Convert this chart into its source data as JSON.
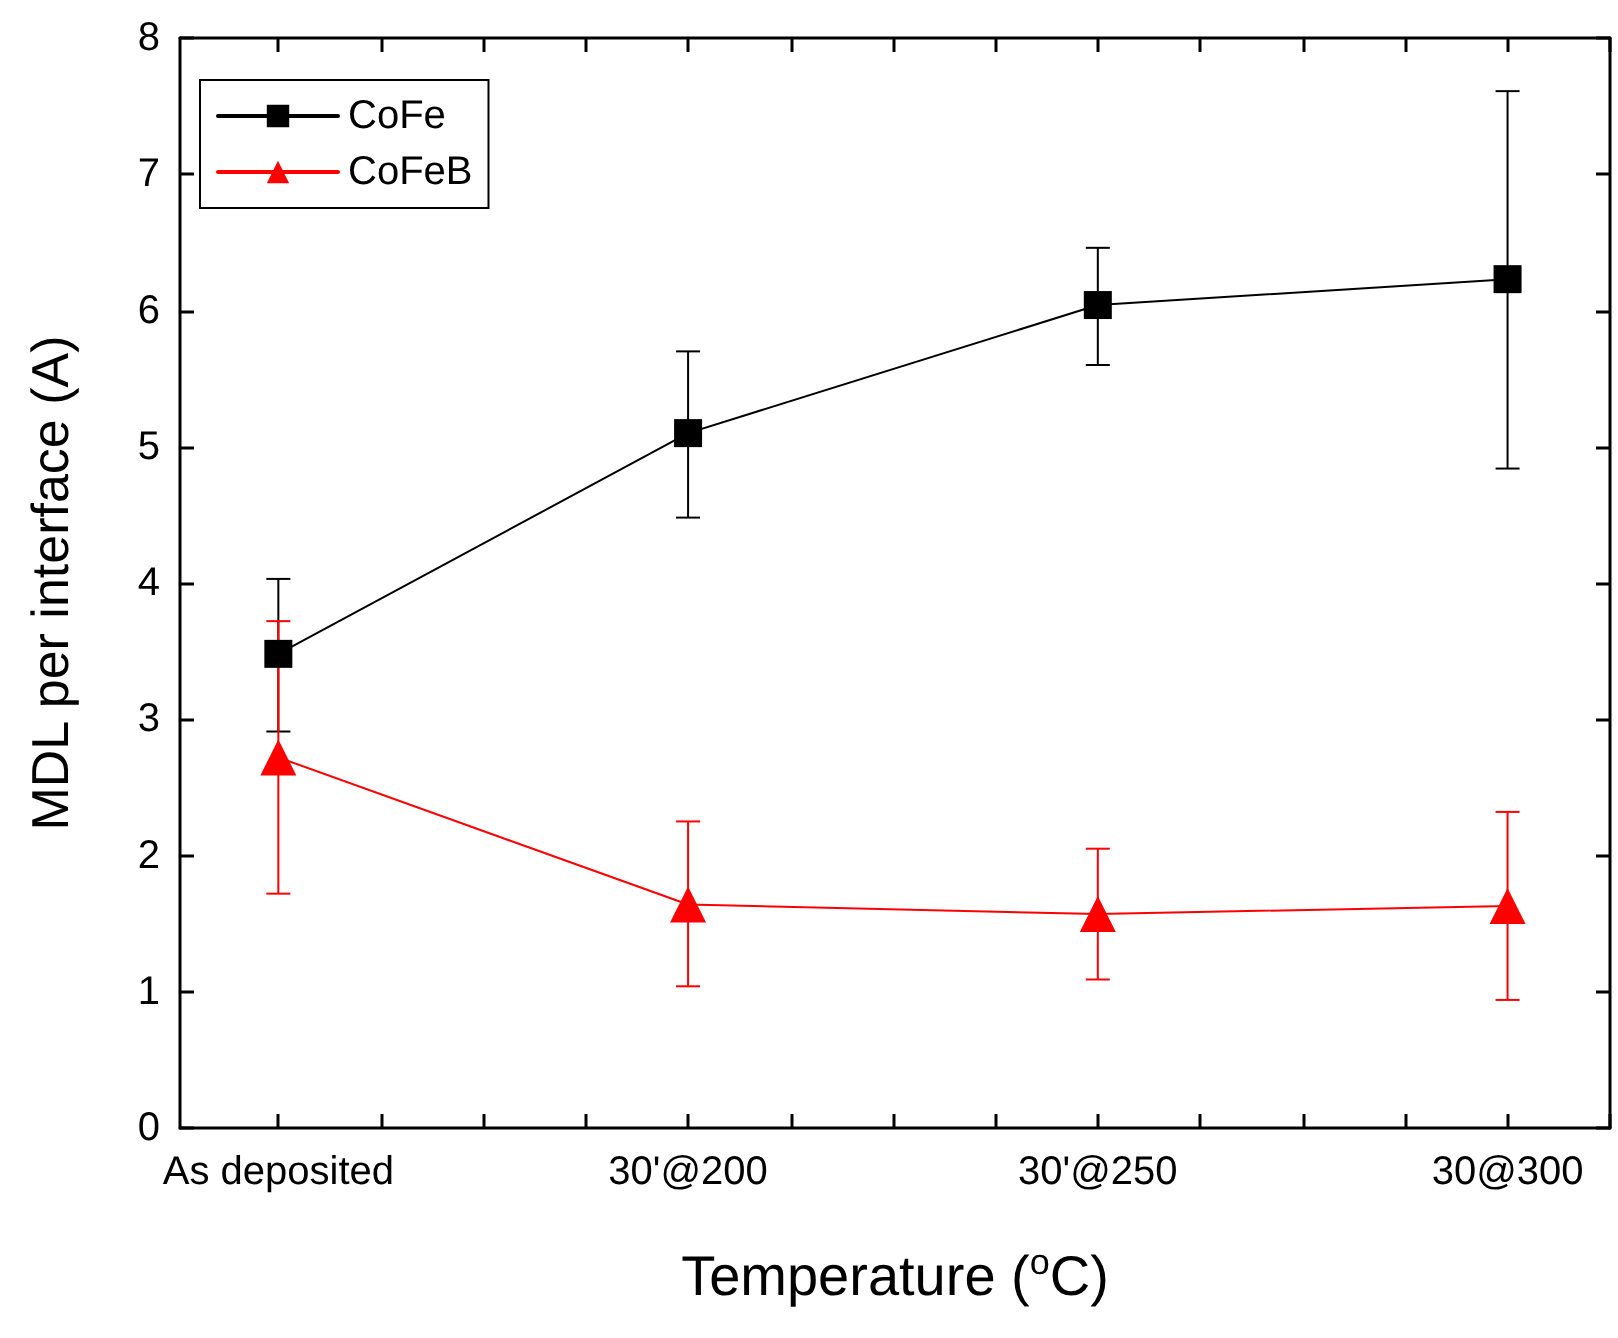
{
  "chart_data": {
    "type": "line",
    "xlabel": "Temperature ($^{o}$C)",
    "ylabel": "MDL per interface (A)",
    "categories": [
      "As deposited",
      "30'@200",
      "30'@250",
      "30@300"
    ],
    "ylim": [
      0,
      8
    ],
    "yticks": [
      0,
      1,
      2,
      3,
      4,
      5,
      6,
      7,
      8
    ],
    "grid": false,
    "legend": "top left",
    "line_style": "solid",
    "series": [
      {
        "name": "CoFe",
        "color": "#000000",
        "marker": "square",
        "values": [
          3.48,
          5.1,
          6.04,
          6.23
        ],
        "errors": [
          [
            2.91,
            4.03
          ],
          [
            4.48,
            5.7
          ],
          [
            5.6,
            6.46
          ],
          [
            4.84,
            7.61
          ]
        ]
      },
      {
        "name": "CoFeB",
        "color": "#ff0000",
        "marker": "triangle",
        "values": [
          2.72,
          1.64,
          1.57,
          1.63
        ],
        "errors": [
          [
            1.72,
            3.72
          ],
          [
            1.04,
            2.25
          ],
          [
            1.09,
            2.05
          ],
          [
            0.94,
            2.32
          ]
        ]
      }
    ]
  }
}
